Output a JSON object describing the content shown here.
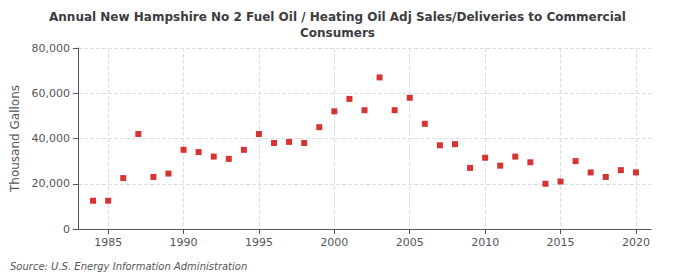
{
  "chart_data": {
    "type": "scatter",
    "title": "Annual New Hampshire No 2 Fuel Oil / Heating Oil Adj Sales/Deliveries to Commercial\nConsumers",
    "ylabel": "Thousand Gallons",
    "annotation": "Source: U.S. Energy Information Administration",
    "color": "#cc0000",
    "marker": "square",
    "x": [
      1984,
      1985,
      1986,
      1987,
      1988,
      1989,
      1990,
      1991,
      1992,
      1993,
      1994,
      1995,
      1996,
      1997,
      1998,
      1999,
      2000,
      2001,
      2002,
      2003,
      2004,
      2005,
      2006,
      2007,
      2008,
      2009,
      2010,
      2011,
      2012,
      2013,
      2014,
      2015,
      2016,
      2017,
      2018,
      2019,
      2020
    ],
    "values": [
      12500,
      12500,
      22500,
      42000,
      23000,
      24500,
      35000,
      34000,
      32000,
      31000,
      35000,
      42000,
      38000,
      38500,
      38000,
      45000,
      52000,
      57500,
      52500,
      67000,
      52500,
      58000,
      46500,
      37000,
      37500,
      27000,
      31500,
      28000,
      32000,
      29500,
      20000,
      21000,
      30000,
      25000,
      23000,
      26000,
      25000
    ],
    "xlim": [
      1983,
      2021
    ],
    "ylim": [
      0,
      80000
    ],
    "xticks": [
      1985,
      1990,
      1995,
      2000,
      2005,
      2010,
      2015,
      2020
    ],
    "yticks": [
      0,
      {
        "value": 20000,
        "label": "20,000"
      },
      {
        "value": 40000,
        "label": "40,000"
      },
      {
        "value": 60000,
        "label": "60,000"
      },
      {
        "value": 80000,
        "label": "80,000"
      }
    ],
    "grid": true
  }
}
